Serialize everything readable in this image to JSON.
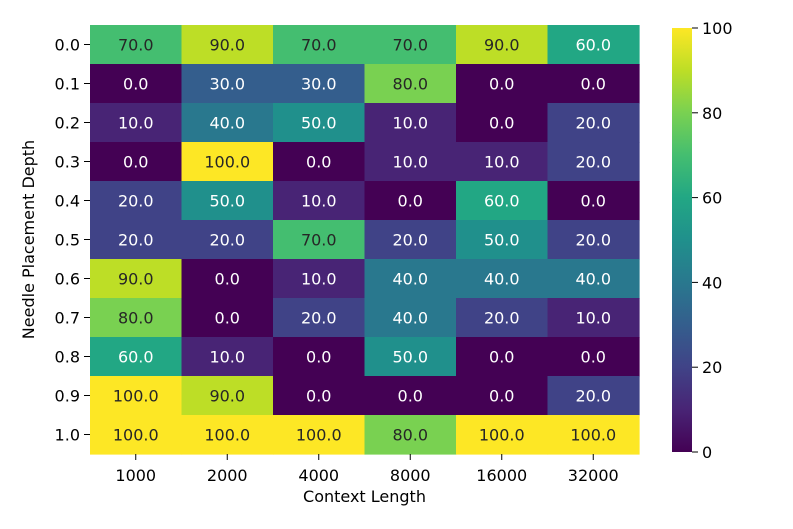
{
  "chart_data": {
    "type": "heatmap",
    "xlabel": "Context Length",
    "ylabel": "Needle Placement Depth",
    "x_categories": [
      "1000",
      "2000",
      "4000",
      "8000",
      "16000",
      "32000"
    ],
    "y_categories": [
      "0.0",
      "0.1",
      "0.2",
      "0.3",
      "0.4",
      "0.5",
      "0.6",
      "0.7",
      "0.8",
      "0.9",
      "1.0"
    ],
    "values": [
      [
        70,
        90,
        70,
        70,
        90,
        60
      ],
      [
        0,
        30,
        30,
        80,
        0,
        0
      ],
      [
        10,
        40,
        50,
        10,
        0,
        20
      ],
      [
        0,
        100,
        0,
        10,
        10,
        20
      ],
      [
        20,
        50,
        10,
        0,
        60,
        0
      ],
      [
        20,
        20,
        70,
        20,
        50,
        20
      ],
      [
        90,
        0,
        10,
        40,
        40,
        40
      ],
      [
        80,
        0,
        20,
        40,
        20,
        10
      ],
      [
        60,
        10,
        0,
        50,
        0,
        0
      ],
      [
        100,
        90,
        0,
        0,
        0,
        20
      ],
      [
        100,
        100,
        100,
        80,
        100,
        100
      ]
    ],
    "value_format": "0.0",
    "colormap": "viridis",
    "vmin": 0,
    "vmax": 100,
    "colorbar_ticks": [
      "0",
      "20",
      "40",
      "60",
      "80",
      "100"
    ],
    "colorbar_position": "right",
    "grid": false
  }
}
